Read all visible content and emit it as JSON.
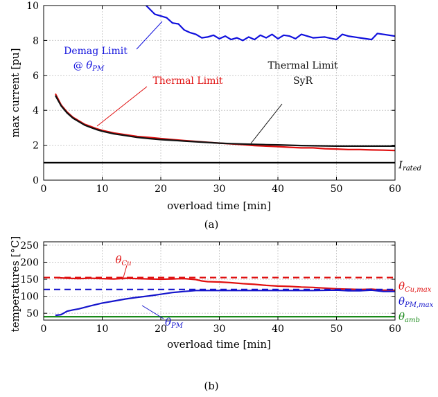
{
  "chart_data": [
    {
      "type": "line",
      "panel_label": "(a)",
      "xlabel": "overload time [min]",
      "ylabel": "max current [pu]",
      "xlim": [
        0,
        60
      ],
      "ylim": [
        0,
        10
      ],
      "xticks": [
        0,
        10,
        20,
        30,
        40,
        50,
        60
      ],
      "yticks": [
        0,
        2,
        4,
        6,
        8,
        10
      ],
      "grid": true,
      "series": [
        {
          "name": "Demag Limit @ θPM",
          "color": "#1010dd",
          "x": [
            17.5,
            19,
            21,
            22,
            23,
            24,
            25,
            26,
            27,
            28,
            29,
            30,
            31,
            32,
            33,
            34,
            35,
            36,
            37,
            38,
            39,
            40,
            41,
            42,
            43,
            44,
            45,
            46,
            48,
            50,
            51,
            52,
            54,
            56,
            57,
            58,
            60
          ],
          "y": [
            10.0,
            9.5,
            9.3,
            9.0,
            8.95,
            8.6,
            8.45,
            8.35,
            8.15,
            8.2,
            8.3,
            8.1,
            8.25,
            8.05,
            8.15,
            8.0,
            8.2,
            8.05,
            8.3,
            8.15,
            8.35,
            8.1,
            8.3,
            8.25,
            8.1,
            8.35,
            8.25,
            8.15,
            8.2,
            8.05,
            8.35,
            8.25,
            8.15,
            8.05,
            8.4,
            8.35,
            8.25
          ]
        },
        {
          "name": "Thermal Limit",
          "color": "#e01010",
          "x": [
            2,
            3,
            4,
            5,
            6,
            7,
            8,
            9,
            10,
            12,
            14,
            16,
            18,
            20,
            22,
            24,
            26,
            28,
            30,
            32,
            34,
            36,
            38,
            40,
            42,
            44,
            46,
            48,
            50,
            52,
            54,
            56,
            58,
            60
          ],
          "y": [
            4.95,
            4.3,
            3.9,
            3.6,
            3.4,
            3.2,
            3.08,
            2.95,
            2.85,
            2.7,
            2.6,
            2.5,
            2.45,
            2.38,
            2.32,
            2.27,
            2.22,
            2.17,
            2.12,
            2.08,
            2.03,
            1.98,
            1.95,
            1.92,
            1.88,
            1.85,
            1.85,
            1.8,
            1.78,
            1.75,
            1.75,
            1.73,
            1.72,
            1.7
          ]
        },
        {
          "name": "Thermal Limit SyR",
          "color": "#111111",
          "x": [
            2,
            3,
            4,
            5,
            6,
            7,
            8,
            9,
            10,
            12,
            14,
            16,
            18,
            20,
            22,
            24,
            26,
            28,
            30,
            32,
            34,
            36,
            38,
            40,
            42,
            44,
            46,
            48,
            50,
            52,
            54,
            56,
            58,
            60
          ],
          "y": [
            4.85,
            4.25,
            3.85,
            3.55,
            3.35,
            3.15,
            3.02,
            2.9,
            2.8,
            2.65,
            2.55,
            2.45,
            2.38,
            2.32,
            2.28,
            2.24,
            2.2,
            2.16,
            2.12,
            2.09,
            2.07,
            2.05,
            2.03,
            2.02,
            2.0,
            1.98,
            1.97,
            1.96,
            1.95,
            1.95,
            1.95,
            1.95,
            1.95,
            1.95
          ]
        },
        {
          "name": "I_rated",
          "color": "#000000",
          "x": [
            0,
            60
          ],
          "y": [
            1,
            1
          ]
        }
      ],
      "annotations": {
        "demag_line1": "Demag Limit",
        "demag_line2": "@ ",
        "demag_sym": "θ",
        "demag_sub": "PM",
        "thermal": "Thermal Limit",
        "syr_line1": "Thermal Limit",
        "syr_line2": "SyR",
        "irated_sym": "I",
        "irated_sub": "rated"
      }
    },
    {
      "type": "line",
      "panel_label": "(b)",
      "xlabel": "overload time [min]",
      "ylabel": "temperatures [°C]",
      "xlim": [
        0,
        60
      ],
      "ylim": [
        30,
        260
      ],
      "xticks": [
        0,
        10,
        20,
        30,
        40,
        50,
        60
      ],
      "yticks": [
        50,
        100,
        150,
        200,
        250
      ],
      "grid": true,
      "series": [
        {
          "name": "θCu",
          "color": "#e01010",
          "x": [
            2,
            4,
            6,
            8,
            10,
            12,
            14,
            16,
            18,
            20,
            22,
            24,
            26,
            27,
            28,
            30,
            32,
            34,
            36,
            38,
            40,
            42,
            44,
            46,
            48,
            50,
            52,
            54,
            56,
            58,
            60
          ],
          "y": [
            155,
            153,
            152,
            153,
            152,
            151,
            153,
            152,
            151,
            150,
            151,
            152,
            149,
            145,
            143,
            142,
            140,
            137,
            135,
            132,
            130,
            129,
            127,
            126,
            124,
            122,
            121,
            120,
            121,
            118,
            118
          ]
        },
        {
          "name": "θPM",
          "color": "#1515cc",
          "x": [
            2,
            3,
            4,
            5,
            6,
            8,
            10,
            12,
            14,
            16,
            18,
            20,
            22,
            24,
            26,
            28,
            30,
            34,
            38,
            42,
            46,
            50,
            52,
            54,
            56,
            58,
            60
          ],
          "y": [
            44,
            46,
            56,
            60,
            63,
            72,
            80,
            86,
            92,
            97,
            101,
            106,
            111,
            114,
            117,
            117,
            117,
            117,
            117,
            117,
            117,
            118,
            116,
            116,
            118,
            114,
            114
          ]
        },
        {
          "name": "θCu,max",
          "color": "#e01010",
          "x": [
            0,
            60
          ],
          "y": [
            155,
            155
          ]
        },
        {
          "name": "θPM,max",
          "color": "#1515cc",
          "x": [
            0,
            60
          ],
          "y": [
            120,
            120
          ]
        },
        {
          "name": "θamb",
          "color": "#1a8a1a",
          "x": [
            0,
            60
          ],
          "y": [
            40,
            40
          ]
        }
      ],
      "annotations": {
        "cu_sym": "θ",
        "cu_sub": "Cu",
        "pm_sym": "θ",
        "pm_sub": "PM",
        "cumax_sym": "θ",
        "cumax_sub": "Cu,max",
        "pmmax_sym": "θ",
        "pmmax_sub": "PM,max",
        "amb_sym": "θ",
        "amb_sub": "amb"
      }
    }
  ]
}
